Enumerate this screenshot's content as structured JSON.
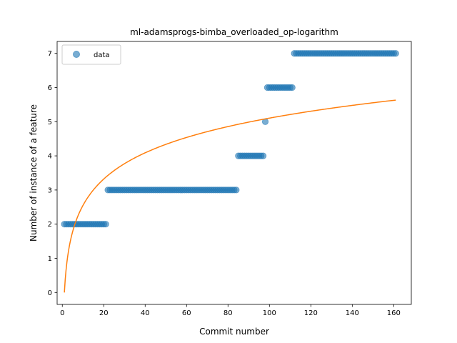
{
  "chart_data": {
    "type": "scatter",
    "title": "ml-adamsprogs-bimba_overloaded_op-logarithm",
    "xlabel": "Commit number",
    "ylabel": "Number of instance of a feature",
    "xlim": [
      -2.5,
      168.5
    ],
    "ylim": [
      -0.35,
      7.35
    ],
    "xticks": [
      0,
      20,
      40,
      60,
      80,
      100,
      120,
      140,
      160
    ],
    "yticks": [
      0,
      1,
      2,
      3,
      4,
      5,
      6,
      7
    ],
    "grid": false,
    "legend": {
      "position": "upper-left",
      "entries": [
        "data"
      ]
    },
    "colors": {
      "data": "#1f77b4",
      "fit": "#ff7f0e"
    },
    "series": [
      {
        "name": "data",
        "kind": "scatter",
        "segments": [
          {
            "x_start": 1,
            "x_end": 21,
            "y": 2
          },
          {
            "x_start": 22,
            "x_end": 84,
            "y": 3
          },
          {
            "x_start": 85,
            "x_end": 97,
            "y": 4
          },
          {
            "x_start": 98,
            "x_end": 98,
            "y": 5
          },
          {
            "x_start": 99,
            "x_end": 111,
            "y": 6
          },
          {
            "x_start": 112,
            "x_end": 161,
            "y": 7
          }
        ]
      },
      {
        "kind": "line",
        "function": "logarithmic fit",
        "a": 1.1085,
        "b": 0.0,
        "x_start": 1,
        "x_end": 161
      }
    ]
  }
}
